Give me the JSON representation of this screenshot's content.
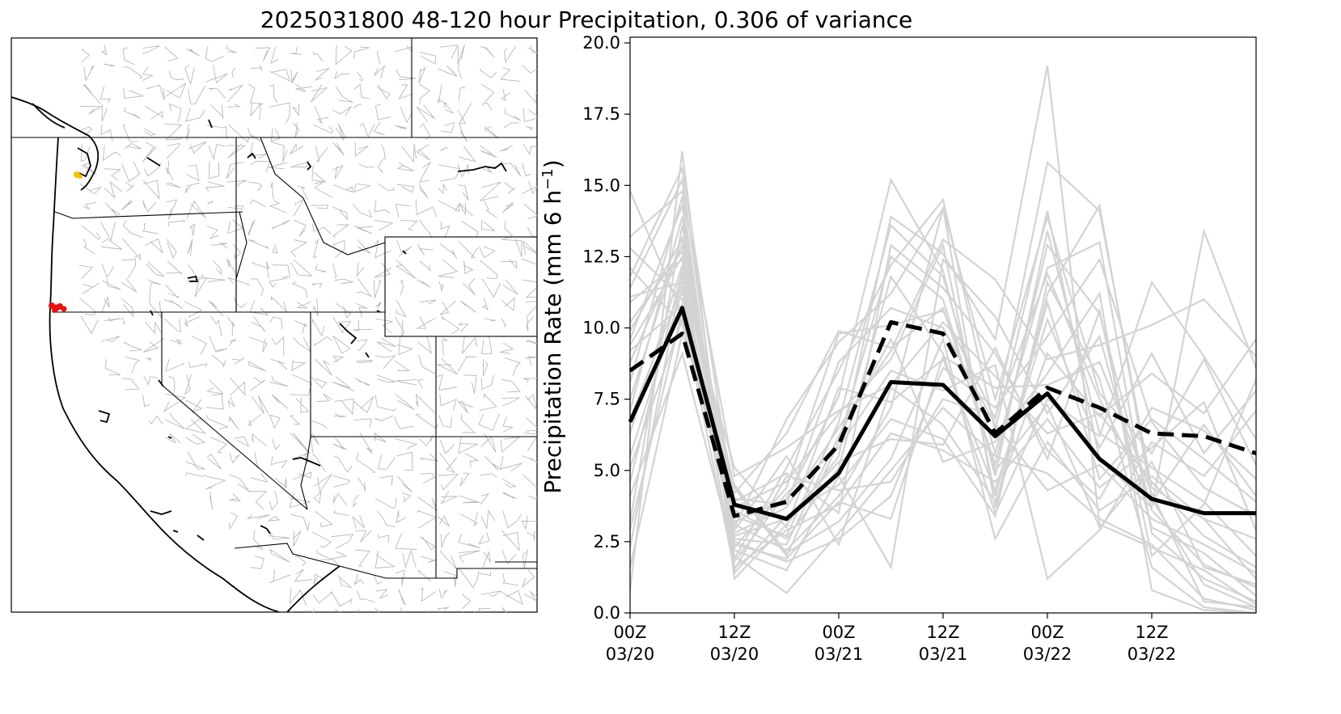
{
  "figure_title": "2025031800 48-120 hour Precipitation, 0.306 of variance",
  "map": {
    "highlight_colors": {
      "red_points": "#e8120c",
      "yellow_points": "#f4c300"
    },
    "line_colors": {
      "coast": "#000000",
      "state_borders": "#000000",
      "basins": "#b8b8b8"
    }
  },
  "chart_data": {
    "type": "line",
    "title": "2025031800 48-120 hour Precipitation, 0.306 of variance",
    "ylabel": "Precipitation Rate (mm 6 h⁻¹)",
    "ylabel_main": "Precipitation Rate (mm 6 h",
    "ylabel_sup": "−1",
    "ylabel_close": ")",
    "xlabel": "",
    "x_hours": [
      0,
      6,
      12,
      18,
      24,
      30,
      36,
      42,
      48,
      54,
      60,
      66,
      72
    ],
    "xlim": [
      0,
      72
    ],
    "ylim": [
      0,
      20.2
    ],
    "yticks": [
      0.0,
      2.5,
      5.0,
      7.5,
      10.0,
      12.5,
      15.0,
      17.5,
      20.0
    ],
    "ytick_labels": [
      "0.0",
      "2.5",
      "5.0",
      "7.5",
      "10.0",
      "12.5",
      "15.0",
      "17.5",
      "20.0"
    ],
    "xticks": [
      {
        "hour": 0,
        "line1": "00Z",
        "line2": "03/20"
      },
      {
        "hour": 12,
        "line1": "12Z",
        "line2": "03/20"
      },
      {
        "hour": 24,
        "line1": "00Z",
        "line2": "03/21"
      },
      {
        "hour": 36,
        "line1": "12Z",
        "line2": "03/21"
      },
      {
        "hour": 48,
        "line1": "00Z",
        "line2": "03/22"
      },
      {
        "hour": 60,
        "line1": "12Z",
        "line2": "03/22"
      }
    ],
    "series": [
      {
        "style": "solid-black",
        "values": [
          6.7,
          10.7,
          3.8,
          3.3,
          4.9,
          8.1,
          8.0,
          6.2,
          7.7,
          5.4,
          4.0,
          3.5,
          3.5
        ]
      },
      {
        "style": "dashed-black",
        "values": [
          8.5,
          9.8,
          3.4,
          3.9,
          5.9,
          10.2,
          9.8,
          6.3,
          7.9,
          7.2,
          6.3,
          6.2,
          5.6
        ]
      }
    ],
    "ensemble_color": "#d3d3d3",
    "ensemble": [
      [
        14.8,
        10.5,
        3.2,
        4.0,
        7.6,
        15.2,
        12.0,
        4.8,
        13.4,
        6.3,
        5.1,
        3.9,
        2.0
      ],
      [
        0.8,
        16.2,
        1.2,
        3.1,
        5.5,
        13.9,
        12.6,
        9.6,
        19.2,
        3.1,
        2.3,
        1.5,
        0.3
      ],
      [
        11.4,
        15.2,
        2.3,
        4.4,
        9.8,
        10.1,
        10.6,
        6.8,
        15.8,
        14.1,
        4.4,
        3.3,
        1.2
      ],
      [
        9.6,
        14.3,
        1.9,
        5.1,
        8.5,
        12.2,
        14.5,
        6.4,
        14.1,
        5.4,
        3.7,
        13.4,
        8.6
      ],
      [
        7.5,
        13.2,
        3.1,
        2.2,
        4.1,
        7.2,
        14.2,
        3.7,
        11.2,
        14.3,
        4.0,
        1.0,
        0.2
      ],
      [
        10.9,
        12.4,
        2.8,
        3.7,
        6.5,
        9.2,
        13.1,
        11.7,
        8.9,
        9.4,
        10.1,
        11.0,
        9.0
      ],
      [
        2.3,
        11.9,
        1.6,
        2.9,
        3.8,
        6.3,
        5.7,
        4.6,
        6.8,
        4.4,
        5.8,
        7.4,
        2.9
      ],
      [
        12.1,
        10.1,
        4.2,
        6.3,
        9.9,
        9.3,
        10.7,
        5.2,
        12.9,
        10.5,
        3.6,
        1.7,
        0.9
      ],
      [
        5.5,
        11.3,
        2.5,
        1.8,
        2.6,
        4.1,
        8.6,
        7.2,
        9.7,
        12.4,
        6.7,
        4.4,
        3.4
      ],
      [
        8.8,
        12.9,
        3.6,
        2.6,
        5.1,
        11.8,
        9.1,
        3.5,
        7.5,
        6.2,
        11.6,
        9.0,
        6.1
      ],
      [
        4.1,
        9.1,
        2.0,
        0.7,
        2.8,
        5.0,
        7.2,
        5.5,
        4.9,
        3.3,
        2.4,
        0.5,
        0.1
      ],
      [
        13.2,
        14.8,
        4.8,
        5.8,
        7.1,
        8.0,
        10.2,
        8.3,
        6.3,
        7.0,
        4.6,
        2.7,
        1.6
      ],
      [
        6.3,
        12.2,
        1.4,
        3.4,
        4.5,
        6.8,
        6.1,
        3.4,
        11.6,
        8.2,
        1.6,
        0.2,
        0.0
      ],
      [
        9.2,
        10.8,
        3.9,
        4.9,
        3.5,
        12.9,
        11.4,
        9.1,
        5.7,
        4.0,
        7.2,
        6.4,
        4.7
      ],
      [
        3.2,
        13.6,
        2.6,
        2.4,
        6.2,
        9.6,
        5.3,
        6.0,
        8.4,
        11.2,
        0.8,
        0.1,
        0.0
      ],
      [
        11.1,
        11.6,
        5.1,
        3.0,
        7.9,
        7.4,
        8.9,
        4.3,
        10.3,
        5.8,
        9.1,
        5.6,
        7.8
      ],
      [
        7.1,
        13.9,
        2.2,
        1.5,
        4.8,
        1.6,
        12.4,
        10.4,
        7.0,
        9.7,
        3.0,
        2.1,
        0.6
      ],
      [
        10.2,
        12.7,
        3.0,
        6.8,
        9.5,
        11.2,
        14.2,
        7.5,
        13.9,
        7.7,
        5.6,
        8.9,
        5.2
      ],
      [
        1.6,
        9.8,
        4.5,
        2.1,
        3.2,
        5.4,
        9.6,
        2.6,
        6.0,
        3.6,
        4.8,
        3.3,
        2.6
      ],
      [
        8.1,
        14.6,
        1.8,
        4.2,
        5.8,
        8.5,
        7.8,
        8.7,
        1.2,
        2.9,
        6.0,
        4.8,
        7.1
      ],
      [
        12.8,
        11.0,
        3.4,
        2.7,
        6.7,
        13.6,
        11.8,
        5.6,
        12.1,
        13.0,
        2.8,
        1.2,
        0.4
      ],
      [
        5.1,
        10.3,
        2.9,
        5.5,
        2.4,
        7.9,
        6.6,
        3.9,
        9.1,
        6.9,
        8.4,
        7.0,
        9.6
      ],
      [
        9.9,
        13.1,
        4.0,
        3.8,
        8.8,
        10.7,
        10.0,
        6.6,
        4.3,
        5.2,
        3.3,
        2.4,
        1.4
      ],
      [
        4.6,
        12.0,
        2.4,
        1.9,
        3.9,
        3.3,
        9.0,
        7.9,
        8.0,
        8.8,
        4.2,
        0.4,
        0.2
      ],
      [
        11.8,
        15.6,
        3.7,
        4.6,
        7.0,
        8.9,
        12.9,
        4.1,
        10.9,
        4.7,
        6.8,
        5.4,
        3.9
      ],
      [
        6.8,
        11.5,
        2.7,
        3.3,
        5.3,
        6.1,
        5.9,
        9.3,
        5.4,
        10.6,
        2.0,
        3.8,
        8.2
      ],
      [
        9.4,
        12.5,
        4.4,
        2.0,
        6.0,
        12.5,
        11.0,
        5.0,
        7.3,
        3.0,
        5.3,
        1.6,
        1.0
      ],
      [
        2.9,
        10.6,
        1.5,
        4.8,
        4.3,
        4.6,
        7.5,
        6.9,
        11.9,
        7.5,
        3.9,
        6.6,
        4.1
      ]
    ]
  }
}
